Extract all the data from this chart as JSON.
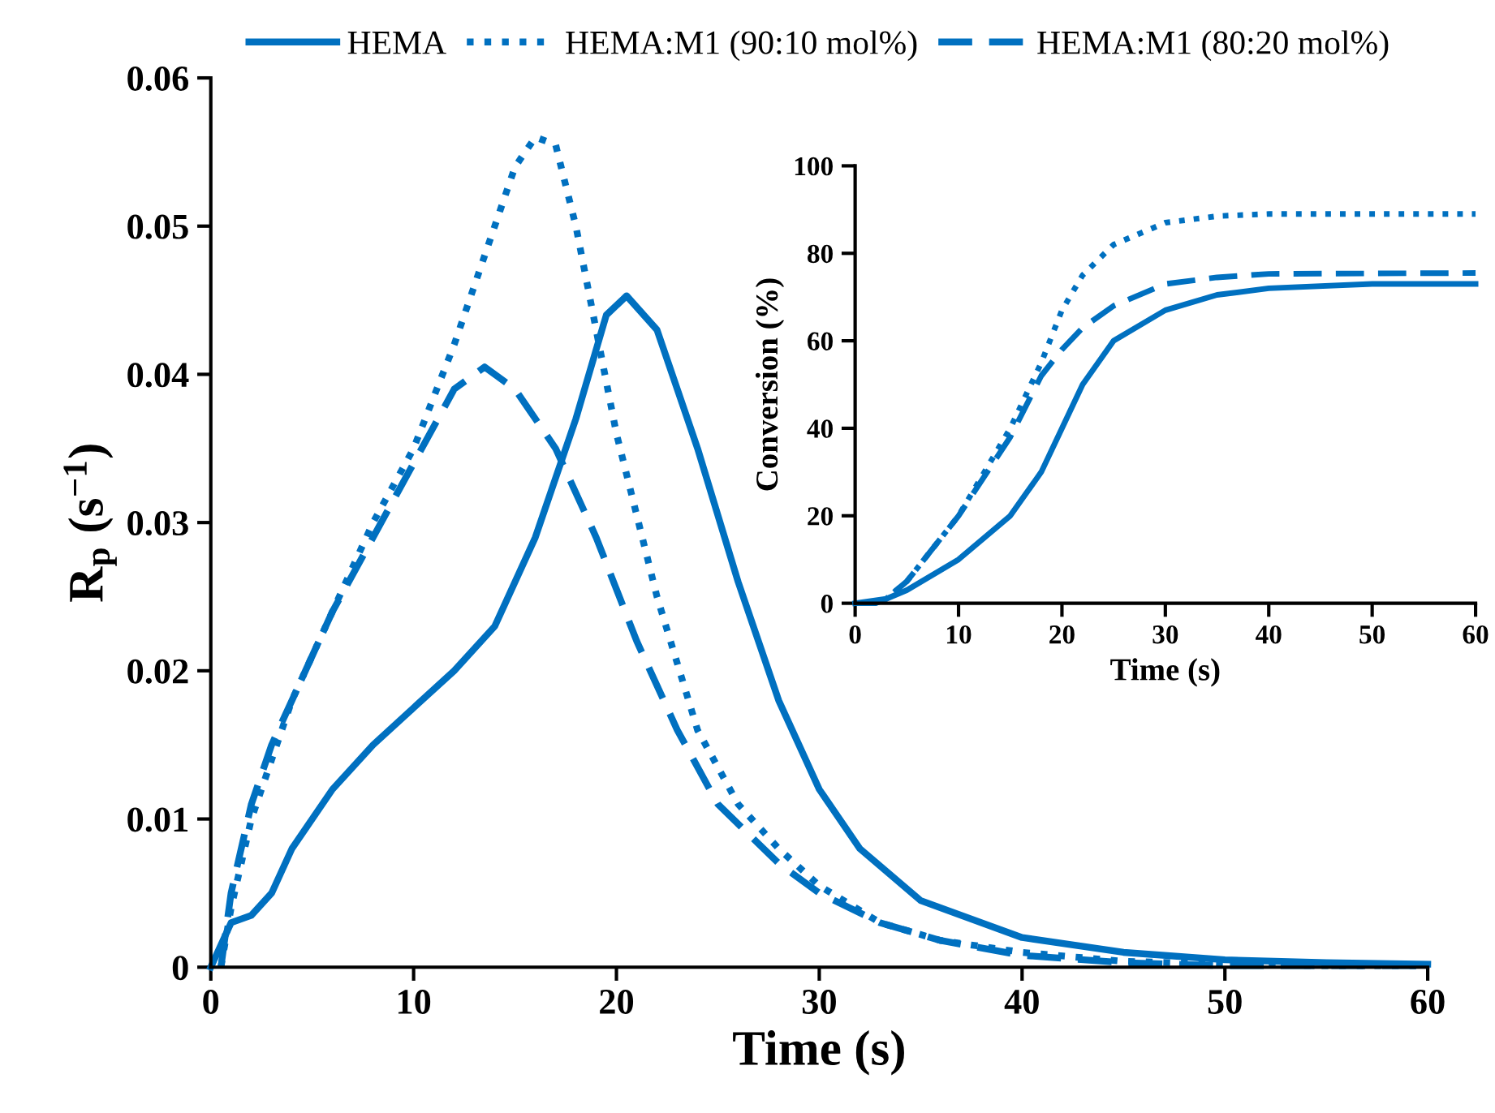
{
  "chart_data": [
    {
      "type": "line",
      "xlabel": "Time (s)",
      "ylabel": "R$_{p}$ (s$^{−1}$)",
      "xlim": [
        0,
        60
      ],
      "ylim": [
        0,
        0.06
      ],
      "xticks": [
        0,
        10,
        20,
        30,
        40,
        50,
        60
      ],
      "yticks": [
        0,
        0.01,
        0.02,
        0.03,
        0.04,
        0.05,
        0.06
      ],
      "legend": "top",
      "grid": false,
      "series": [
        {
          "name": "HEMA",
          "color": "#0070c0",
          "line_style": "solid",
          "x": [
            0,
            1,
            2,
            3,
            4,
            6,
            8,
            10,
            12,
            14,
            16,
            18,
            19.5,
            20.5,
            22,
            24,
            26,
            28,
            30,
            32,
            35,
            40,
            45,
            50,
            55,
            60
          ],
          "values": [
            0,
            0.003,
            0.0035,
            0.005,
            0.008,
            0.012,
            0.015,
            0.0175,
            0.02,
            0.023,
            0.029,
            0.037,
            0.044,
            0.0453,
            0.043,
            0.035,
            0.026,
            0.018,
            0.012,
            0.008,
            0.0045,
            0.002,
            0.001,
            0.0005,
            0.0003,
            0.0002
          ]
        },
        {
          "name": "HEMA:M1 (90:10 mol%)",
          "color": "#0070c0",
          "line_style": "dotted",
          "x": [
            0.5,
            1,
            2,
            3,
            4,
            6,
            8,
            10,
            12,
            14,
            15,
            16,
            17,
            18,
            19,
            20,
            22,
            24,
            26,
            28,
            30,
            33,
            36,
            40,
            45,
            50,
            55,
            60
          ],
          "values": [
            0,
            0.004,
            0.01,
            0.014,
            0.018,
            0.024,
            0.03,
            0.035,
            0.042,
            0.05,
            0.054,
            0.056,
            0.0555,
            0.05,
            0.043,
            0.036,
            0.025,
            0.016,
            0.011,
            0.008,
            0.0055,
            0.003,
            0.0018,
            0.001,
            0.0004,
            0.0002,
            0.0001,
            0.0001
          ]
        },
        {
          "name": "HEMA:M1 (80:20 mol%)",
          "color": "#0070c0",
          "line_style": "dashed",
          "x": [
            0.5,
            1,
            2,
            3,
            4,
            6,
            8,
            10,
            12,
            13.5,
            15,
            17,
            19,
            21,
            23,
            25,
            28,
            30,
            33,
            36,
            40,
            45,
            50,
            60
          ],
          "values": [
            0,
            0.005,
            0.011,
            0.015,
            0.018,
            0.024,
            0.029,
            0.034,
            0.039,
            0.0405,
            0.039,
            0.035,
            0.029,
            0.022,
            0.016,
            0.011,
            0.007,
            0.005,
            0.003,
            0.0018,
            0.0008,
            0.0003,
            0.0001,
            0.0001
          ]
        }
      ]
    },
    {
      "type": "line",
      "xlabel": "Time (s)",
      "ylabel": "Conversion (%)",
      "xlim": [
        0,
        60
      ],
      "ylim": [
        0,
        100
      ],
      "xticks": [
        0,
        10,
        20,
        30,
        40,
        50,
        60
      ],
      "yticks": [
        0,
        20,
        40,
        60,
        80,
        100
      ],
      "grid": false,
      "series": [
        {
          "color": "#0070c0",
          "line_style": "solid",
          "x": [
            0,
            3,
            5,
            10,
            15,
            18,
            20,
            22,
            25,
            30,
            35,
            40,
            50,
            60
          ],
          "values": [
            0,
            1,
            3,
            10,
            20,
            30,
            40,
            50,
            60,
            67,
            70.5,
            72,
            73,
            73
          ]
        },
        {
          "color": "#0070c0",
          "line_style": "dotted",
          "x": [
            0,
            2,
            3,
            5,
            10,
            15,
            18,
            20,
            22,
            25,
            30,
            35,
            40,
            60
          ],
          "values": [
            0,
            0,
            1,
            5,
            20,
            40,
            55,
            67,
            75,
            82,
            87,
            88.5,
            89,
            89
          ]
        },
        {
          "color": "#0070c0",
          "line_style": "dashed",
          "x": [
            0,
            2,
            3,
            5,
            10,
            15,
            18,
            20,
            22,
            25,
            30,
            35,
            40,
            60
          ],
          "values": [
            0,
            0,
            1,
            5,
            20,
            38,
            52,
            58,
            63,
            68,
            73,
            74.5,
            75.3,
            75.5
          ]
        }
      ]
    }
  ]
}
